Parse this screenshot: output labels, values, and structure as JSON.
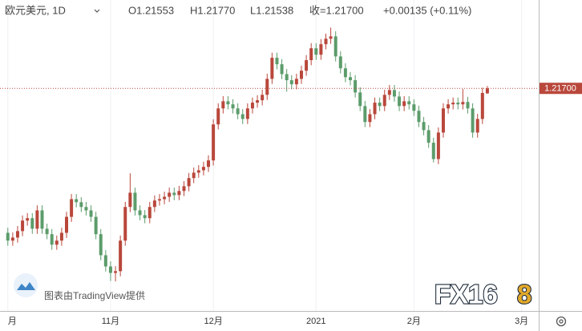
{
  "chart_data": {
    "type": "candlestick",
    "symbol": "欧元美元, 1D",
    "info": [
      "O1.21553",
      "H1.21770",
      "L1.21538",
      "收=1.21700",
      "+0.00135 (+0.11%)"
    ],
    "credit": "图表由TradingView提供",
    "watermark": [
      "FX16",
      "8"
    ],
    "up_color": "#b9473b",
    "down_color": "#5c9c6b",
    "grid": true,
    "last_price": {
      "value": 1.217,
      "label": "1.21700"
    },
    "ylim": [
      1.1515,
      1.243
    ],
    "xlim": [
      -1.6,
      108.5
    ],
    "xticks": [
      {
        "value": 0,
        "label": "月"
      },
      {
        "value": 21,
        "label": "11月"
      },
      {
        "value": 42,
        "label": "12月"
      },
      {
        "value": 63,
        "label": "2021"
      },
      {
        "value": 83,
        "label": "2月"
      },
      {
        "value": 105,
        "label": "3月"
      }
    ],
    "open": [
      1.1745,
      1.1722,
      1.1731,
      1.175,
      1.1781,
      1.1788,
      1.1757,
      1.1811,
      1.1757,
      1.1741,
      1.171,
      1.1722,
      1.1745,
      1.1792,
      1.1844,
      1.1835,
      1.1821,
      1.1811,
      1.1792,
      1.1741,
      1.1679,
      1.1646,
      1.1627,
      1.1632,
      1.1722,
      1.1821,
      1.1863,
      1.1811,
      1.1797,
      1.1788,
      1.1821,
      1.184,
      1.1844,
      1.1851,
      1.1863,
      1.1856,
      1.1868,
      1.1882,
      1.1906,
      1.1922,
      1.1929,
      1.1939,
      1.1958,
      1.2064,
      1.2111,
      1.2132,
      1.2123,
      1.2111,
      1.2094,
      1.208,
      1.2111,
      1.2128,
      1.2135,
      1.2151,
      1.2198,
      1.226,
      1.2241,
      1.2212,
      1.2194,
      1.2182,
      1.2198,
      1.2222,
      1.2253,
      1.2288,
      1.2269,
      1.23,
      1.2316,
      1.2323,
      1.2264,
      1.2229,
      1.2203,
      1.2194,
      1.2158,
      1.2118,
      1.2071,
      1.2094,
      1.2128,
      1.2118,
      1.2151,
      1.2165,
      1.2146,
      1.2118,
      1.2132,
      1.2123,
      1.2104,
      1.2071,
      1.2047,
      1.201,
      1.1962,
      1.204,
      1.2111,
      1.2123,
      1.2128,
      1.2123,
      1.213,
      1.2111,
      1.204,
      1.208,
      1.21553
    ],
    "high": [
      1.176,
      1.1746,
      1.1765,
      1.1796,
      1.1803,
      1.1803,
      1.1826,
      1.1826,
      1.1772,
      1.1756,
      1.1737,
      1.176,
      1.1807,
      1.1859,
      1.1859,
      1.185,
      1.1836,
      1.1826,
      1.1807,
      1.1756,
      1.1694,
      1.1661,
      1.1647,
      1.1737,
      1.1836,
      1.192,
      1.1878,
      1.1826,
      1.1812,
      1.1836,
      1.1855,
      1.1859,
      1.1866,
      1.1878,
      1.1878,
      1.1883,
      1.1897,
      1.1921,
      1.1937,
      1.1944,
      1.1954,
      1.1973,
      1.2079,
      1.2126,
      1.2147,
      1.2147,
      1.2138,
      1.2126,
      1.2109,
      1.2126,
      1.2143,
      1.215,
      1.2166,
      1.2213,
      1.2275,
      1.2275,
      1.2256,
      1.2227,
      1.2209,
      1.2213,
      1.2237,
      1.2268,
      1.2303,
      1.2303,
      1.2315,
      1.2331,
      1.2349,
      1.2338,
      1.2279,
      1.2244,
      1.2218,
      1.2209,
      1.2173,
      1.2133,
      1.2109,
      1.2143,
      1.2143,
      1.2166,
      1.218,
      1.218,
      1.2161,
      1.2147,
      1.2147,
      1.2138,
      1.2119,
      1.2086,
      1.2062,
      1.2025,
      1.2055,
      1.2126,
      1.2138,
      1.2143,
      1.2143,
      1.2168,
      1.2145,
      1.2126,
      1.2095,
      1.2172,
      1.2177
    ],
    "low": [
      1.1707,
      1.1707,
      1.1716,
      1.1735,
      1.1766,
      1.1742,
      1.1742,
      1.1742,
      1.1726,
      1.1695,
      1.1695,
      1.1707,
      1.173,
      1.1777,
      1.182,
      1.1806,
      1.1796,
      1.1777,
      1.1726,
      1.1664,
      1.1631,
      1.1603,
      1.1602,
      1.1617,
      1.1707,
      1.1806,
      1.1796,
      1.1782,
      1.1773,
      1.1773,
      1.1806,
      1.1825,
      1.1829,
      1.1836,
      1.1841,
      1.1841,
      1.1853,
      1.1867,
      1.1891,
      1.1907,
      1.1914,
      1.1924,
      1.1943,
      1.2049,
      1.2096,
      1.2108,
      1.2096,
      1.2079,
      1.2065,
      1.2065,
      1.2096,
      1.2113,
      1.212,
      1.2136,
      1.2183,
      1.2226,
      1.2197,
      1.216,
      1.2167,
      1.2167,
      1.2183,
      1.2207,
      1.2238,
      1.2254,
      1.2254,
      1.2285,
      1.2301,
      1.2249,
      1.2214,
      1.2188,
      1.2179,
      1.2143,
      1.2103,
      1.2056,
      1.2056,
      1.2079,
      1.2103,
      1.2103,
      1.2136,
      1.2131,
      1.2103,
      1.2103,
      1.2108,
      1.2089,
      1.2056,
      1.2032,
      1.1995,
      1.1952,
      1.1947,
      1.2025,
      1.2096,
      1.2108,
      1.2108,
      1.2108,
      1.2096,
      1.2025,
      1.2025,
      1.2065,
      1.21538
    ],
    "close": [
      1.1722,
      1.1731,
      1.175,
      1.1781,
      1.1788,
      1.1757,
      1.1811,
      1.1757,
      1.1741,
      1.171,
      1.1722,
      1.1745,
      1.1792,
      1.1844,
      1.1835,
      1.1821,
      1.1811,
      1.1792,
      1.1741,
      1.1679,
      1.1646,
      1.1627,
      1.1632,
      1.1722,
      1.1821,
      1.1863,
      1.1811,
      1.1797,
      1.1788,
      1.1821,
      1.184,
      1.1844,
      1.1851,
      1.1863,
      1.1856,
      1.1868,
      1.1882,
      1.1906,
      1.1922,
      1.1929,
      1.1939,
      1.1958,
      1.2064,
      1.2111,
      1.2132,
      1.2123,
      1.2111,
      1.2094,
      1.208,
      1.2111,
      1.2128,
      1.2135,
      1.2151,
      1.2198,
      1.226,
      1.2241,
      1.2212,
      1.2194,
      1.2182,
      1.2198,
      1.2222,
      1.2253,
      1.2288,
      1.2269,
      1.23,
      1.2316,
      1.2323,
      1.2264,
      1.2229,
      1.2203,
      1.2194,
      1.2158,
      1.2118,
      1.2071,
      1.2094,
      1.2128,
      1.2118,
      1.2151,
      1.2165,
      1.2146,
      1.2118,
      1.2132,
      1.2123,
      1.2104,
      1.2071,
      1.2047,
      1.201,
      1.1962,
      1.204,
      1.2111,
      1.2123,
      1.2128,
      1.2123,
      1.213,
      1.2111,
      1.204,
      1.208,
      1.21565,
      1.217
    ]
  }
}
